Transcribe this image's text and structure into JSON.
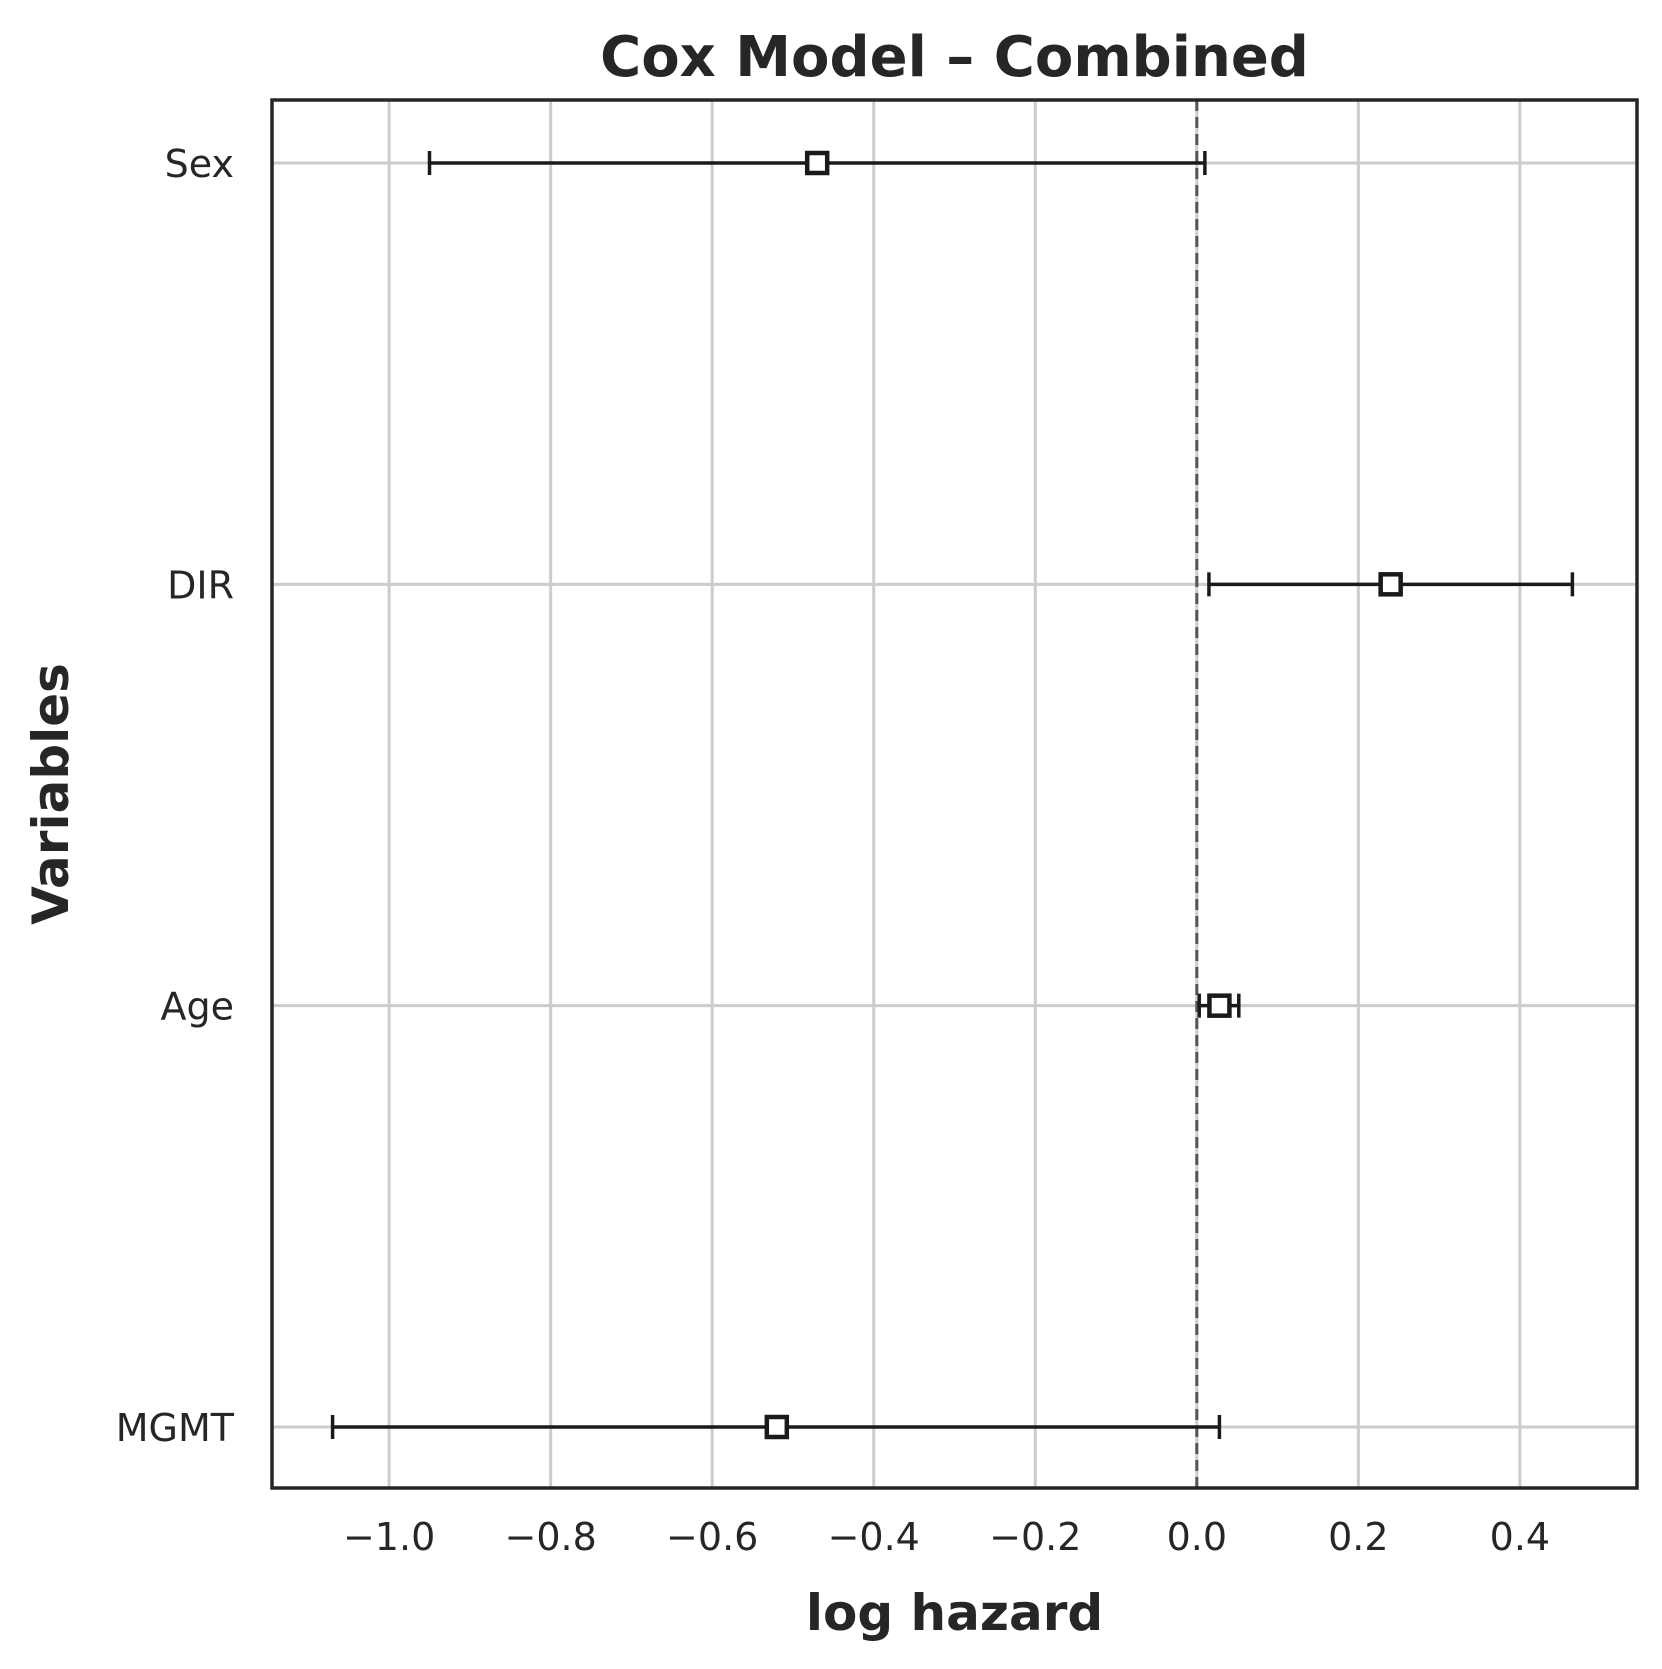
{
  "chart_data": {
    "type": "forest",
    "title": "Cox Model – Combined",
    "xlabel": "log hazard",
    "ylabel": "Variables",
    "xlim": [
      -1.145,
      0.545
    ],
    "xticks": [
      -1.0,
      -0.8,
      -0.6,
      -0.4,
      -0.2,
      0.0,
      0.2,
      0.4
    ],
    "xtick_labels": [
      "−1.0",
      "−0.8",
      "−0.6",
      "−0.4",
      "−0.2",
      "0.0",
      "0.2",
      "0.4"
    ],
    "reference_line": 0.0,
    "grid": true,
    "marker": "square-open",
    "variables": [
      {
        "name": "Sex",
        "coef": -0.47,
        "lower": -0.95,
        "upper": 0.01
      },
      {
        "name": "DIR",
        "coef": 0.24,
        "lower": 0.015,
        "upper": 0.465
      },
      {
        "name": "Age",
        "coef": 0.028,
        "lower": 0.003,
        "upper": 0.052
      },
      {
        "name": "MGMT",
        "coef": -0.52,
        "lower": -1.07,
        "upper": 0.028
      }
    ],
    "colors": {
      "axes": "#262626",
      "grid": "#cccccc",
      "errorbar": "#1a1a1a",
      "reference": "#555555",
      "marker_fill": "#ffffff"
    }
  }
}
